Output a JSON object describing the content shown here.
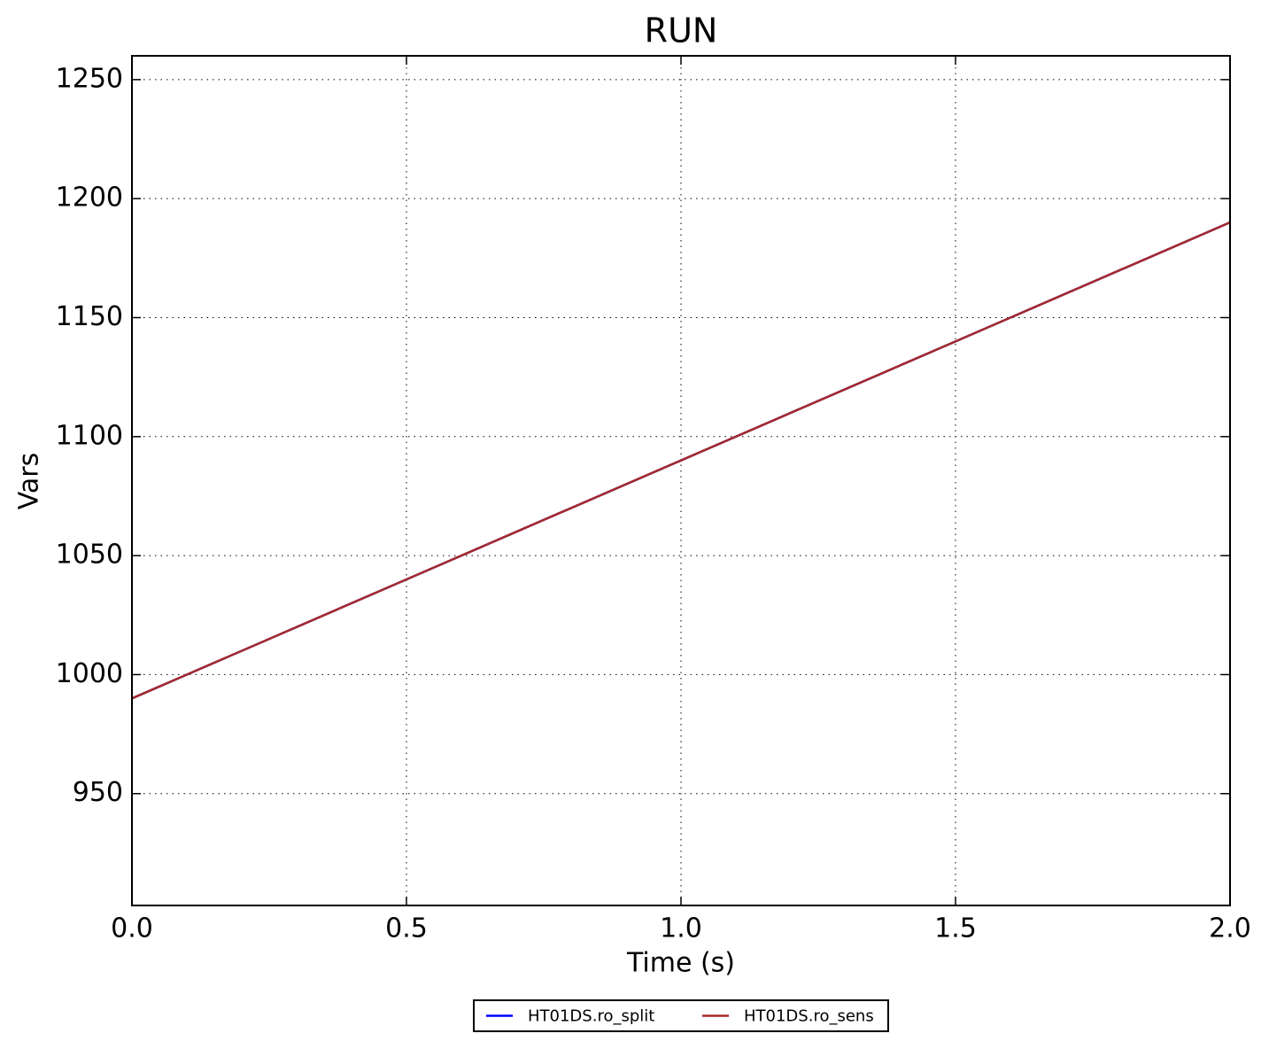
{
  "chart_data": {
    "type": "line",
    "title": "RUN",
    "x_label": "Time (s)",
    "y_label": "Vars",
    "x": [
      0,
      0.5,
      1,
      1.5,
      2
    ],
    "series": [
      {
        "name": "HT01DS.ro_split",
        "color": "#0000ff",
        "values": [
          990,
          1040,
          1090,
          1140,
          1190
        ]
      },
      {
        "name": "HT01DS.ro_sens",
        "color": "#a52a2a",
        "values": [
          990,
          1040,
          1090,
          1140,
          1190
        ]
      }
    ],
    "xlim": [
      0,
      2
    ],
    "xticks": [
      {
        "value": 0,
        "label": "0.0"
      },
      {
        "value": 0.5,
        "label": "0.5"
      },
      {
        "value": 1,
        "label": "1.0"
      },
      {
        "value": 1.5,
        "label": "1.5"
      },
      {
        "value": 2,
        "label": "2.0"
      }
    ],
    "ylim": [
      903,
      1260
    ],
    "yticks": [
      950,
      1000,
      1050,
      1100,
      1150,
      1200,
      1250
    ],
    "grid": true,
    "legend": "bottom"
  }
}
